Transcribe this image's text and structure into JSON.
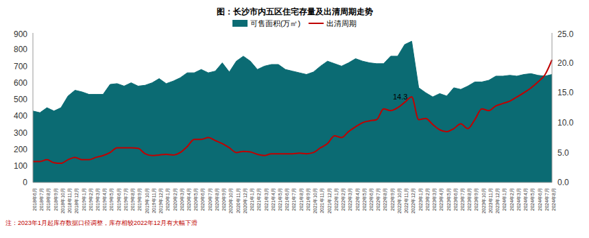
{
  "chart_data": {
    "type": "area_line",
    "title": "图：长沙市内五区住宅存量及出清周期走势",
    "note": "注：2023年1月起库存数据口径调整，库存相较2022年12月有大幅下滑",
    "legend": "top",
    "categories": [
      "2018年6月",
      "2018年7月",
      "2018年8月",
      "2018年9月",
      "2018年10月",
      "2018年11月",
      "2018年12月",
      "2019年1月",
      "2019年2月",
      "2019年3月",
      "2019年4月",
      "2019年5月",
      "2019年6月",
      "2019年7月",
      "2019年8月",
      "2019年9月",
      "2019年10月",
      "2019年11月",
      "2019年12月",
      "2020年1月",
      "2020年2月",
      "2020年3月",
      "2020年4月",
      "2020年5月",
      "2020年6月",
      "2020年7月",
      "2020年8月",
      "2020年9月",
      "2020年10月",
      "2020年11月",
      "2020年12月",
      "2021年1月",
      "2021年2月",
      "2021年3月",
      "2021年4月",
      "2021年5月",
      "2021年6月",
      "2021年7月",
      "2021年8月",
      "2021年9月",
      "2021年10月",
      "2021年11月",
      "2021年12月",
      "2022年1月",
      "2022年2月",
      "2022年3月",
      "2022年4月",
      "2022年5月",
      "2022年6月",
      "2022年7月",
      "2022年8月",
      "2022年9月",
      "2022年10月",
      "2022年11月",
      "2022年12月",
      "2023年1月",
      "2023年2月",
      "2023年3月",
      "2023年4月",
      "2023年5月",
      "2023年6月",
      "2023年7月",
      "2023年8月",
      "2023年9月",
      "2023年10月",
      "2023年11月",
      "2023年12月",
      "2024年1月",
      "2024年2月",
      "2024年3月",
      "2024年4月",
      "2024年5月",
      "2024年6月",
      "2024年7月",
      "2024年8月"
    ],
    "series": [
      {
        "name": "可售面积(万㎡)",
        "type": "area",
        "color": "#0b6b73",
        "values": [
          430,
          420,
          450,
          430,
          450,
          520,
          555,
          545,
          530,
          530,
          530,
          590,
          595,
          580,
          600,
          580,
          585,
          600,
          625,
          595,
          610,
          630,
          660,
          660,
          680,
          660,
          670,
          720,
          665,
          730,
          760,
          730,
          680,
          700,
          710,
          710,
          680,
          670,
          660,
          650,
          665,
          700,
          730,
          715,
          700,
          720,
          745,
          730,
          720,
          715,
          715,
          760,
          760,
          830,
          850,
          570,
          540,
          515,
          535,
          520,
          570,
          560,
          580,
          605,
          605,
          615,
          640,
          640,
          645,
          640,
          650,
          655,
          645,
          640,
          650
        ]
      },
      {
        "name": "出清周期",
        "type": "line",
        "axis": "y2",
        "color": "#c00000",
        "values": [
          3.5,
          3.5,
          3.8,
          3.3,
          3.2,
          3.8,
          4.2,
          3.8,
          3.8,
          4.2,
          4.5,
          5.0,
          5.8,
          5.8,
          5.8,
          5.7,
          4.8,
          4.5,
          4.6,
          4.7,
          4.6,
          5.0,
          6.0,
          7.2,
          7.2,
          7.5,
          7.0,
          6.5,
          5.8,
          5.0,
          5.2,
          5.1,
          4.7,
          4.5,
          4.8,
          4.8,
          4.8,
          4.8,
          4.9,
          4.8,
          5.0,
          5.8,
          6.5,
          7.8,
          7.5,
          8.5,
          9.3,
          10.0,
          10.3,
          10.5,
          12.3,
          12.0,
          12.5,
          13.4,
          14.3,
          10.5,
          10.7,
          9.7,
          8.8,
          8.5,
          9.0,
          9.8,
          9.0,
          10.5,
          12.3,
          12.0,
          12.8,
          13.2,
          13.6,
          14.3,
          15.0,
          15.8,
          16.8,
          18.0,
          20.5
        ]
      }
    ],
    "ylim": [
      0,
      900
    ],
    "yticks": [
      0,
      100,
      200,
      300,
      400,
      500,
      600,
      700,
      800,
      900
    ],
    "y2lim": [
      0,
      25
    ],
    "y2ticks": [
      {
        "value": 0,
        "label": "0.0"
      },
      {
        "value": 5,
        "label": "5.0"
      },
      {
        "value": 10,
        "label": "10.0"
      },
      {
        "value": 15,
        "label": "15.0"
      },
      {
        "value": 20,
        "label": "20.0"
      },
      {
        "value": 25,
        "label": "25.0"
      }
    ],
    "annotations": [
      {
        "category": "2022年12月",
        "label": "14.3"
      }
    ]
  }
}
